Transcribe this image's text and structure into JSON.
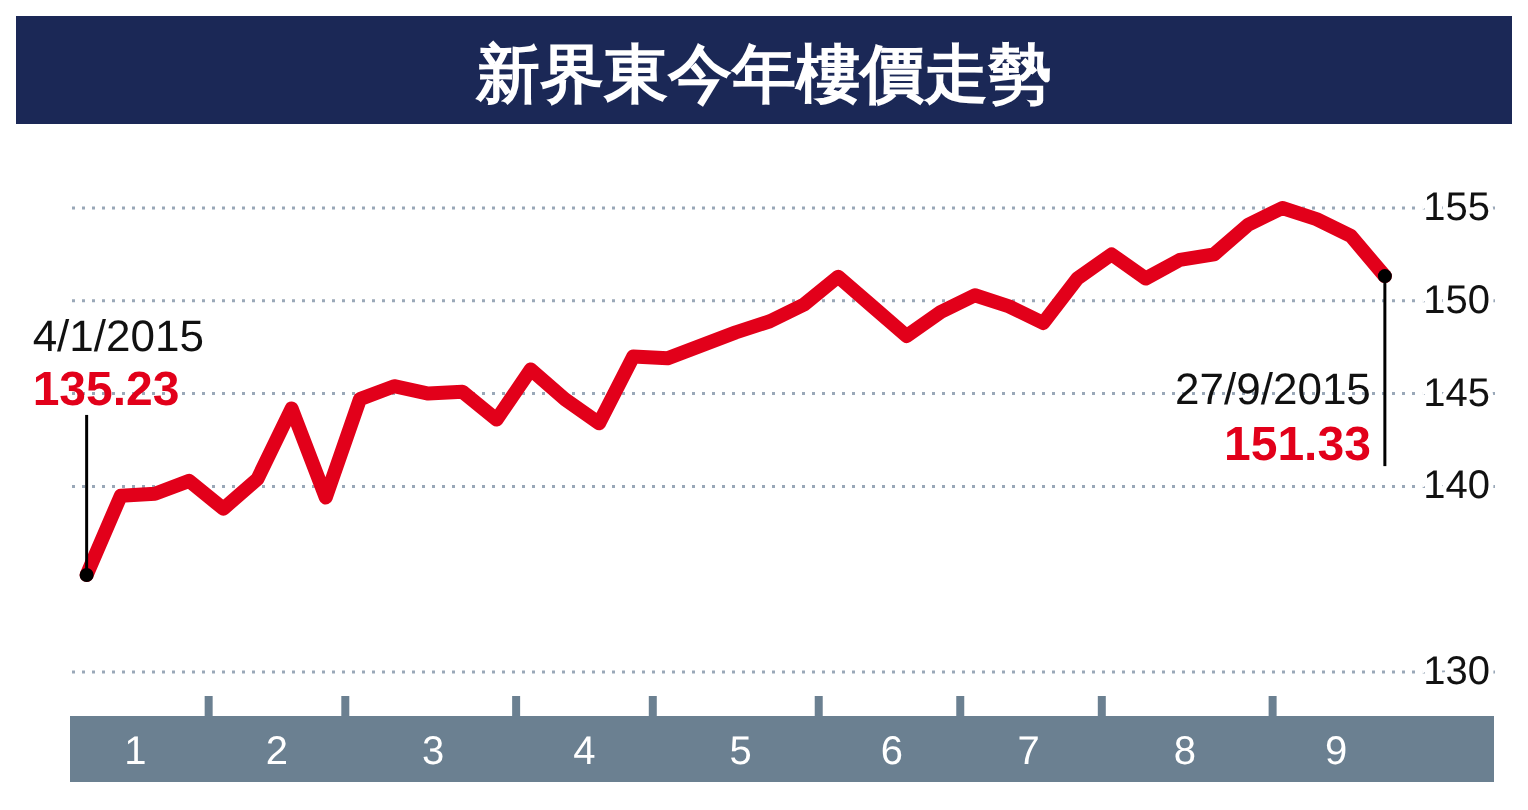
{
  "chart_data": {
    "type": "line",
    "title": "新界東今年樓價走勢",
    "x": [
      "2015-01-04",
      "2015-01-11",
      "2015-01-18",
      "2015-01-25",
      "2015-02-01",
      "2015-02-08",
      "2015-02-15",
      "2015-02-22",
      "2015-03-01",
      "2015-03-08",
      "2015-03-15",
      "2015-03-22",
      "2015-03-29",
      "2015-04-05",
      "2015-04-12",
      "2015-04-19",
      "2015-04-26",
      "2015-05-03",
      "2015-05-10",
      "2015-05-17",
      "2015-05-24",
      "2015-05-31",
      "2015-06-07",
      "2015-06-14",
      "2015-06-21",
      "2015-06-28",
      "2015-07-05",
      "2015-07-12",
      "2015-07-19",
      "2015-07-26",
      "2015-08-02",
      "2015-08-09",
      "2015-08-16",
      "2015-08-23",
      "2015-08-30",
      "2015-09-06",
      "2015-09-13",
      "2015-09-20",
      "2015-09-27"
    ],
    "series": [
      {
        "color": "#e2001a",
        "values": [
          135.23,
          139.5,
          139.6,
          140.3,
          138.8,
          140.4,
          144.2,
          139.4,
          144.7,
          145.4,
          145.0,
          145.1,
          143.6,
          146.3,
          144.7,
          143.4,
          147.0,
          146.9,
          147.6,
          148.3,
          148.9,
          149.8,
          151.3,
          149.7,
          148.1,
          149.4,
          150.3,
          149.7,
          148.8,
          151.2,
          152.5,
          151.2,
          152.2,
          152.5,
          154.1,
          155.0,
          154.4,
          153.5,
          151.33
        ],
        "value_labels": [
          "135.23",
          null,
          null,
          null,
          null,
          null,
          null,
          null,
          null,
          null,
          null,
          null,
          null,
          null,
          null,
          null,
          null,
          null,
          null,
          null,
          null,
          null,
          null,
          null,
          null,
          null,
          null,
          null,
          null,
          null,
          null,
          null,
          null,
          null,
          null,
          null,
          null,
          null,
          "151.33"
        ]
      }
    ],
    "annotations": [
      {
        "text": "4/1/2015",
        "x": "2015-01-04",
        "y": 135.23
      },
      {
        "text": "27/9/2015",
        "x": "2015-09-27",
        "y": 151.33
      }
    ],
    "xlim": [
      "2015-01-01",
      "2015-10-21"
    ],
    "xticks": [
      {
        "value": "2015-01-14",
        "label": "1"
      },
      {
        "value": "2015-01-29",
        "label": null
      },
      {
        "value": "2015-02-12",
        "label": "2"
      },
      {
        "value": "2015-02-26",
        "label": null
      },
      {
        "value": "2015-03-16",
        "label": "3"
      },
      {
        "value": "2015-04-02",
        "label": null
      },
      {
        "value": "2015-04-16",
        "label": "4"
      },
      {
        "value": "2015-04-30",
        "label": null
      },
      {
        "value": "2015-05-18",
        "label": "5"
      },
      {
        "value": "2015-06-03",
        "label": null
      },
      {
        "value": "2015-06-18",
        "label": "6"
      },
      {
        "value": "2015-07-02",
        "label": null
      },
      {
        "value": "2015-07-16",
        "label": "7"
      },
      {
        "value": "2015-07-31",
        "label": null
      },
      {
        "value": "2015-08-17",
        "label": "8"
      },
      {
        "value": "2015-09-04",
        "label": null
      },
      {
        "value": "2015-09-17",
        "label": "9"
      }
    ],
    "ylim": [
      130,
      155
    ],
    "yticks": [
      130,
      140,
      145,
      150,
      155
    ],
    "grid": "y",
    "marker": "none",
    "line_style": "solid"
  }
}
